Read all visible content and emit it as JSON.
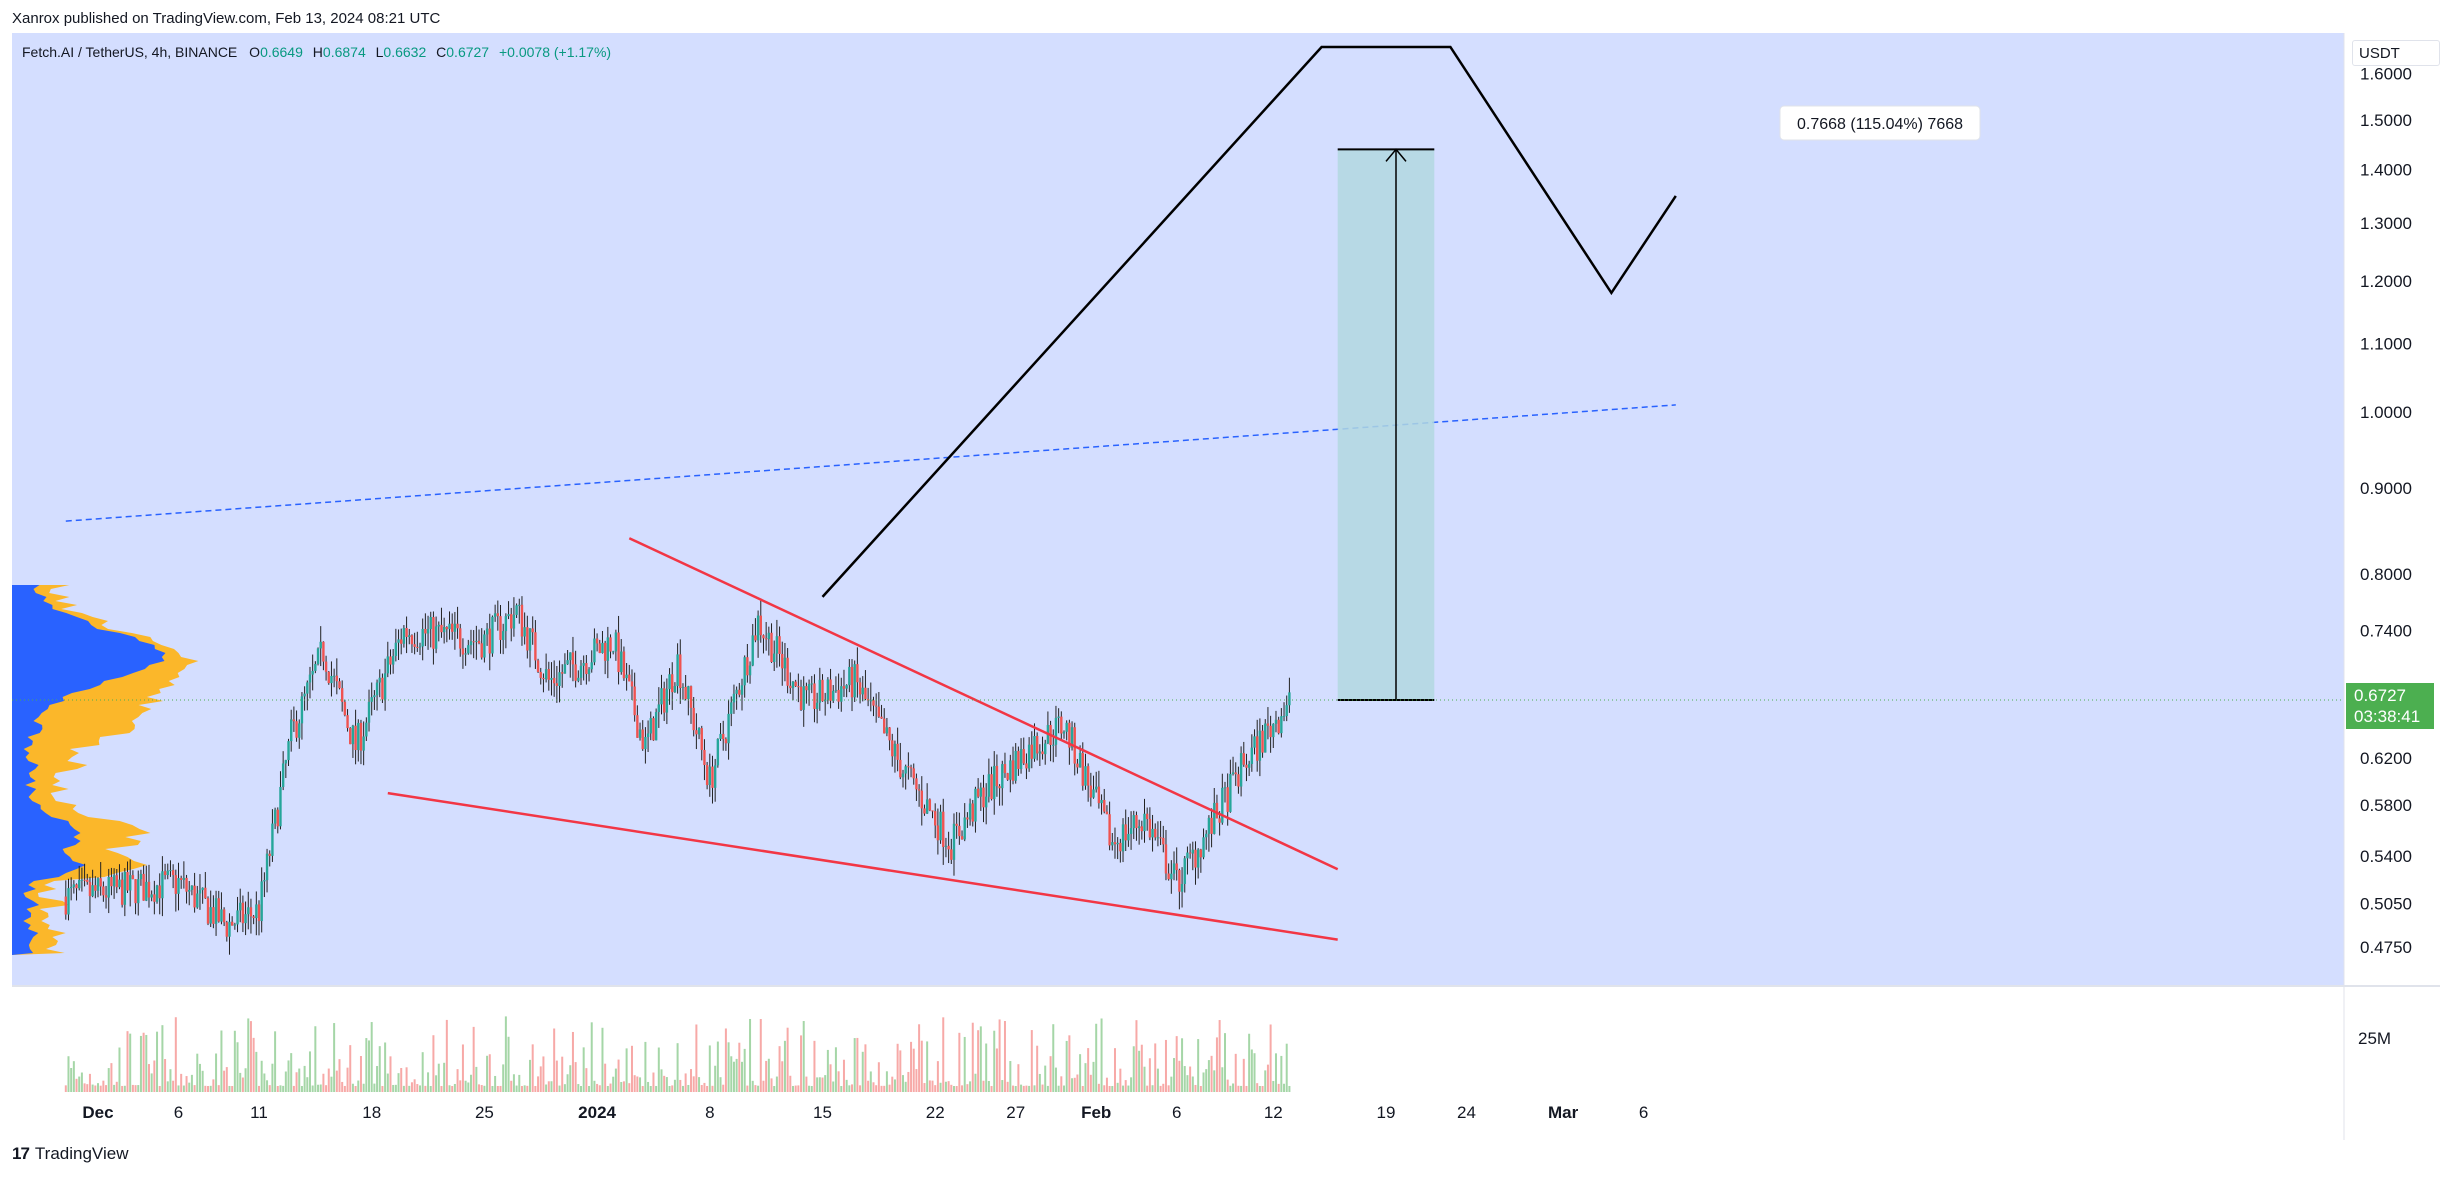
{
  "header": {
    "published": "Xanrox published on TradingView.com, Feb 13, 2024 08:21 UTC"
  },
  "legend": {
    "symbol": "Fetch.AI / TetherUS, 4h, BINANCE",
    "o_label": "O",
    "o_value": "0.6649",
    "h_label": "H",
    "h_value": "0.6874",
    "l_label": "L",
    "l_value": "0.6632",
    "c_label": "C",
    "c_value": "0.6727",
    "change": "+0.0078 (+1.17%)"
  },
  "price_axis": {
    "unit": "USDT",
    "ticks": [
      "1.6000",
      "1.5000",
      "1.4000",
      "1.3000",
      "1.2000",
      "1.1000",
      "1.0000",
      "0.9000",
      "0.8000",
      "0.7400",
      "0.6200",
      "0.5800",
      "0.5400",
      "0.5050",
      "0.4750"
    ]
  },
  "last_price": {
    "value": "0.6727",
    "countdown": "03:38:41"
  },
  "measure_label": "0.7668 (115.04%) 7668",
  "volume_axis_label": "25M",
  "time_axis": {
    "labels": [
      "Dec",
      "6",
      "11",
      "18",
      "25",
      "2024",
      "8",
      "15",
      "22",
      "27",
      "Feb",
      "6",
      "12",
      "19",
      "24",
      "Mar",
      "6"
    ]
  },
  "footer": {
    "brand": "TradingView",
    "logo": "17"
  },
  "colors": {
    "plot_background": "#d4deff",
    "up": "#26a69a",
    "down": "#ef5350",
    "wedge": "#f23645",
    "projection": "#000000",
    "trend_dashed": "#2962ff",
    "volume_profile_blue": "#2962ff",
    "volume_profile_orange": "#fbb72a",
    "target_box": "#b2d8e0",
    "price_tag": "#4caf50"
  },
  "chart_data": {
    "type": "candlestick",
    "symbol": "Fetch.AI / TetherUS",
    "interval": "4h",
    "exchange": "BINANCE",
    "scale": "log",
    "ylim": [
      0.46,
      1.62
    ],
    "x_range": [
      "2023-11-29",
      "2024-03-08"
    ],
    "trend_path": [
      {
        "date": "2023-11-29",
        "close": 0.51
      },
      {
        "date": "2023-12-06",
        "close": 0.52
      },
      {
        "date": "2023-12-09",
        "close": 0.49
      },
      {
        "date": "2023-12-11",
        "close": 0.5
      },
      {
        "date": "2023-12-13",
        "close": 0.64
      },
      {
        "date": "2023-12-15",
        "close": 0.72
      },
      {
        "date": "2023-12-17",
        "close": 0.63
      },
      {
        "date": "2023-12-20",
        "close": 0.74
      },
      {
        "date": "2023-12-25",
        "close": 0.73
      },
      {
        "date": "2023-12-27",
        "close": 0.76
      },
      {
        "date": "2023-12-29",
        "close": 0.69
      },
      {
        "date": "2024-01-02",
        "close": 0.73
      },
      {
        "date": "2024-01-04",
        "close": 0.63
      },
      {
        "date": "2024-01-06",
        "close": 0.71
      },
      {
        "date": "2024-01-08",
        "close": 0.6
      },
      {
        "date": "2024-01-11",
        "close": 0.75
      },
      {
        "date": "2024-01-14",
        "close": 0.67
      },
      {
        "date": "2024-01-17",
        "close": 0.69
      },
      {
        "date": "2024-01-20",
        "close": 0.61
      },
      {
        "date": "2024-01-23",
        "close": 0.55
      },
      {
        "date": "2024-01-25",
        "close": 0.59
      },
      {
        "date": "2024-01-28",
        "close": 0.63
      },
      {
        "date": "2024-01-30",
        "close": 0.65
      },
      {
        "date": "2024-02-02",
        "close": 0.55
      },
      {
        "date": "2024-02-04",
        "close": 0.57
      },
      {
        "date": "2024-02-06",
        "close": 0.52
      },
      {
        "date": "2024-02-08",
        "close": 0.56
      },
      {
        "date": "2024-02-10",
        "close": 0.61
      },
      {
        "date": "2024-02-13",
        "close": 0.6727
      }
    ],
    "drawings": {
      "wedge_upper": [
        {
          "date": "2024-01-03",
          "price": 0.84
        },
        {
          "date": "2024-02-16",
          "price": 0.53
        }
      ],
      "wedge_lower": [
        {
          "date": "2023-12-19",
          "price": 0.59
        },
        {
          "date": "2024-02-16",
          "price": 0.48
        }
      ],
      "dashed_trend": [
        {
          "date": "2023-11-29",
          "price": 0.86
        },
        {
          "date": "2024-03-08",
          "price": 1.01
        }
      ],
      "projection": [
        {
          "date": "2024-01-15",
          "price": 0.775
        },
        {
          "date": "2024-02-15",
          "price": 1.66
        },
        {
          "date": "2024-02-23",
          "price": 1.66
        },
        {
          "date": "2024-03-04",
          "price": 1.18
        },
        {
          "date": "2024-03-08",
          "price": 1.35
        }
      ],
      "target_box": {
        "from": "2024-02-16",
        "to": "2024-02-22",
        "low": 0.6727,
        "high": 1.44
      }
    }
  }
}
